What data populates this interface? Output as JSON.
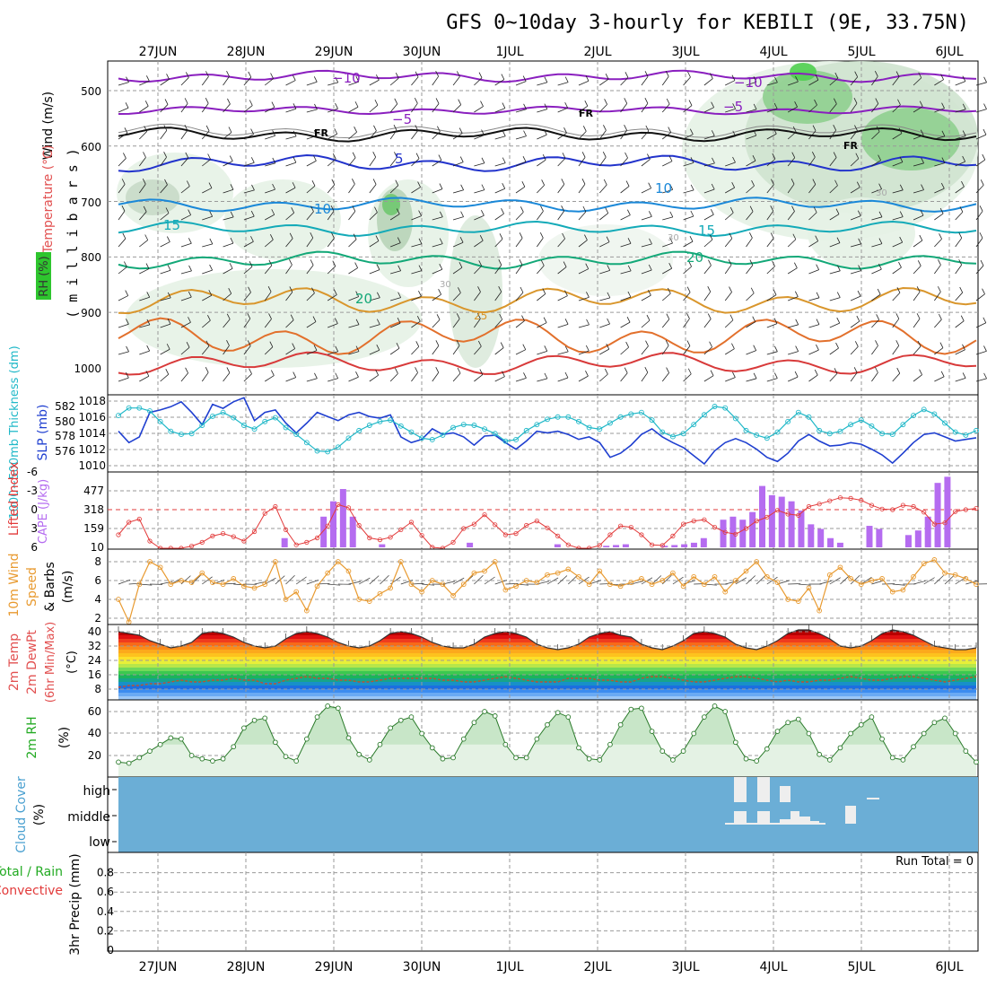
{
  "title": "GFS 0~10day 3-hourly for KEBILI (9E, 33.75N)",
  "date_labels": [
    "27JUN",
    "28JUN",
    "29JUN",
    "30JUN",
    "1JUL",
    "2JUL",
    "3JUL",
    "4JUL",
    "5JUL",
    "6JUL"
  ],
  "run_total": "Run Total = 0",
  "colors": {
    "rh_green": "#5fd25f",
    "cloud_blue": "#6baed6",
    "slp": "#1f3fd0",
    "thickness": "#20b8c8",
    "lifted": "#e23a3a",
    "cape": "#b56cf0",
    "wind": "#e89a30",
    "rh2m": "#22aa22"
  },
  "panels": {
    "upper": {
      "labels": {
        "wind": "Wind (m/s)",
        "temperature": "Temperature (°C)",
        "rh": "RH (%)",
        "millibars": "( m i l l i b a r s )"
      },
      "ticks": [
        "500",
        "600",
        "700",
        "800",
        "900",
        "1000"
      ],
      "contour_labels": {
        "minus10": "−10",
        "minus5": "−5",
        "fr": "FR",
        "five": "5",
        "ten": "10",
        "fifteen": "15",
        "twenty": "20",
        "twentyfive": "25",
        "thirty": "30"
      }
    },
    "slp": {
      "ylabel_slp": "SLP (mb)",
      "ylabel_thk": "1000~500mb Thickness (dm)",
      "left_ticks": [
        "582",
        "580",
        "578",
        "576"
      ],
      "right_ticks": [
        "1018",
        "1016",
        "1014",
        "1012",
        "1010"
      ]
    },
    "li": {
      "ylabel_li": "Lifted Index",
      "ylabel_cape": "CAPE (J/kg)",
      "li_ticks": [
        "-6",
        "-3",
        "0",
        "3",
        "6"
      ],
      "cape_ticks": [
        "477",
        "318",
        "159",
        "10"
      ]
    },
    "wind": {
      "ylabel1": "10m Wind",
      "ylabel2": "Speed",
      "ylabel3": "& Barbs",
      "unit": "(m/s)",
      "ticks": [
        "8",
        "6",
        "4",
        "2"
      ]
    },
    "temp": {
      "ylabel1": "2m Temp",
      "ylabel2": "2m DewPt",
      "ylabel3": "(6hr Min/Max)",
      "unit": "(°C)",
      "ticks": [
        "40",
        "32",
        "24",
        "16",
        "8"
      ]
    },
    "rh2m": {
      "ylabel": "2m RH",
      "unit": "(%)",
      "ticks": [
        "60",
        "40",
        "20"
      ]
    },
    "cloud": {
      "ylabel": "Cloud Cover",
      "unit": "(%)",
      "levels": [
        "high",
        "middle",
        "low"
      ]
    },
    "precip": {
      "ylabel1": "Total / Rain",
      "ylabel2": "Convective",
      "ylabel3": "3hr Precip (mm)",
      "ticks": [
        "0.8",
        "0.6",
        "0.4",
        "0.2",
        "0"
      ]
    }
  },
  "chart_data": [
    {
      "type": "line",
      "title": "SLP (mb)",
      "series": [
        {
          "name": "SLP (mb)",
          "unit": "mb",
          "values": [
            1014.2,
            1012.8,
            1013.5,
            1016.5,
            1016.8,
            1017.2,
            1017.8,
            1016.5,
            1015.0,
            1017.5,
            1017.0,
            1017.8,
            1018.3,
            1015.5,
            1016.5,
            1016.8,
            1015.2,
            1014.0,
            1015.2,
            1016.5,
            1016.0,
            1015.5,
            1016.2,
            1016.5,
            1016.0,
            1015.8,
            1016.2,
            1013.5,
            1012.8,
            1013.2,
            1014.5,
            1013.8,
            1014.0,
            1013.5,
            1012.5,
            1013.6,
            1013.7,
            1012.8,
            1012.0,
            1013.0,
            1014.2,
            1014.0,
            1014.2,
            1013.8,
            1013.2,
            1013.5,
            1012.8,
            1011.0,
            1011.5,
            1012.5,
            1013.8,
            1014.5,
            1013.5,
            1012.8,
            1012.2,
            1011.2,
            1010.2,
            1011.8,
            1012.8,
            1013.3,
            1012.8,
            1012.0,
            1011.0,
            1010.5,
            1011.5,
            1013.0,
            1013.8,
            1013.0,
            1012.4,
            1012.5,
            1012.8,
            1012.6,
            1012.0,
            1011.3,
            1010.3,
            1011.5,
            1012.8,
            1013.8,
            1014.0,
            1013.5,
            1013.0,
            1013.2,
            1013.4
          ]
        }
      ]
    },
    {
      "type": "line",
      "title": "1000~500mb Thickness (dm)",
      "series": [
        {
          "name": "1000~500mb Thickness (dm)",
          "unit": "dm",
          "values": [
            580.8,
            581.8,
            581.8,
            581.4,
            580.0,
            578.7,
            578.3,
            578.4,
            579.5,
            580.7,
            581.2,
            580.5,
            579.5,
            579.0,
            580.0,
            580.5,
            579.2,
            578.3,
            577.2,
            576.1,
            576.0,
            576.6,
            577.8,
            578.8,
            579.5,
            580.0,
            580.2,
            579.4,
            578.6,
            577.8,
            577.6,
            578.2,
            579.2,
            579.6,
            579.5,
            579.0,
            578.4,
            577.4,
            577.6,
            578.8,
            579.6,
            580.3,
            580.6,
            580.6,
            580.0,
            579.2,
            579.0,
            579.8,
            580.6,
            581.0,
            581.2,
            580.2,
            578.6,
            578.0,
            578.4,
            579.6,
            580.9,
            582.0,
            581.8,
            580.4,
            578.8,
            578.2,
            577.8,
            578.6,
            580.0,
            581.2,
            580.6,
            578.8,
            578.4,
            578.7,
            579.6,
            580.2,
            579.4,
            578.4,
            578.3,
            579.6,
            580.8,
            581.6,
            581.0,
            579.8,
            578.6,
            578.2,
            578.8
          ]
        }
      ]
    },
    {
      "type": "line",
      "title": "Lifted Index",
      "series": [
        {
          "name": "Lifted Index",
          "values": [
            4.0,
            2.0,
            1.5,
            5.0,
            6.4,
            6.8,
            6.6,
            5.8,
            5.2,
            4.2,
            3.8,
            4.3,
            5.0,
            3.5,
            0.6,
            -0.5,
            3.2,
            5.6,
            5.2,
            4.5,
            2.6,
            -0.8,
            -0.3,
            2.5,
            4.5,
            4.8,
            4.4,
            3.2,
            2.0,
            4.1,
            6.0,
            6.3,
            5.2,
            3.0,
            2.3,
            0.8,
            2.4,
            4.0,
            3.8,
            2.5,
            1.8,
            2.9,
            4.2,
            5.6,
            6.3,
            6.8,
            5.7,
            4.0,
            2.6,
            2.8,
            4.0,
            5.6,
            5.7,
            4.2,
            2.3,
            1.8,
            1.6,
            2.8,
            3.6,
            3.9,
            3.0,
            1.8,
            1.2,
            0.1,
            0.7,
            0.9,
            -0.5,
            -0.9,
            -1.4,
            -1.9,
            -1.8,
            -1.5,
            -0.7,
            -0.1,
            0.0,
            -0.7,
            -0.5,
            0.4,
            2.3,
            2.1,
            0.3,
            0.0,
            -0.2,
            0.0,
            2.4,
            3.5,
            1.0,
            -1.0,
            -2.5,
            -3.0,
            -2.0
          ]
        }
      ]
    },
    {
      "type": "bar",
      "title": "CAPE (J/kg)",
      "series": [
        {
          "name": "CAPE (J/kg)",
          "unit": "J/kg",
          "values": [
            0,
            0,
            0,
            0,
            0,
            0,
            0,
            0,
            0,
            0,
            0,
            0,
            0,
            0,
            0,
            0,
            0,
            0,
            0,
            0,
            0,
            0,
            0,
            0,
            0,
            0,
            0,
            0,
            0,
            0,
            0,
            0,
            0,
            0,
            0,
            0,
            0,
            0,
            0,
            0,
            0,
            0,
            0,
            0,
            0,
            0,
            0,
            0,
            0,
            0,
            0,
            0,
            0,
            0,
            0,
            0,
            0,
            0,
            0,
            0,
            0,
            0,
            0,
            0,
            0,
            0,
            0,
            0,
            0,
            0,
            0,
            0,
            0,
            0,
            0,
            0,
            0,
            0,
            0,
            0,
            0,
            0,
            0
          ]
        }
      ]
    },
    {
      "type": "line",
      "title": "10m Wind Speed (m/s)",
      "series": [
        {
          "name": "10m Wind Speed",
          "unit": "m/s",
          "values": [
            4.0,
            1.6,
            5.6,
            8.0,
            7.4,
            5.6,
            6.0,
            5.8,
            6.8,
            5.8,
            5.6,
            6.2,
            5.4,
            5.2,
            5.6,
            8.0,
            4.0,
            4.8,
            2.8,
            5.4,
            6.8,
            8.0,
            7.0,
            4.0,
            3.8,
            4.6,
            5.2,
            8.0,
            5.6,
            4.8,
            6.0,
            5.6,
            4.4,
            5.6,
            6.8,
            7.0,
            8.0,
            5.0,
            5.4,
            6.0,
            5.8,
            6.6,
            6.8,
            7.2,
            6.4,
            5.6,
            7.0,
            5.6,
            5.4,
            5.8,
            6.2,
            5.6,
            6.0,
            6.8,
            5.4,
            6.4,
            5.6,
            6.4,
            4.8,
            6.0,
            7.0,
            8.0,
            6.4,
            5.8,
            4.0,
            3.8,
            5.2,
            2.8,
            6.6,
            7.4,
            6.2,
            5.6,
            6.0,
            6.2,
            4.8,
            5.0,
            6.4,
            7.8,
            8.2,
            6.8,
            6.6,
            6.2,
            5.6
          ]
        }
      ]
    },
    {
      "type": "line",
      "title": "2m Temp / 2m DewPt (°C)",
      "series": [
        {
          "name": "2m Temp",
          "unit": "°C",
          "values": [
            40,
            39,
            38,
            35,
            33,
            31,
            32,
            34,
            39,
            40,
            39,
            37,
            34,
            32,
            31,
            32,
            36,
            39,
            40,
            39,
            37,
            34,
            32,
            31,
            32,
            35,
            39,
            40,
            39,
            37,
            34,
            32,
            31,
            31,
            33,
            37,
            39,
            40,
            39,
            37,
            33,
            31,
            30,
            31,
            33,
            37,
            39,
            40,
            38,
            37,
            33,
            31,
            30,
            32,
            35,
            39,
            40,
            39,
            37,
            33,
            31,
            30,
            32,
            35,
            39,
            41,
            41,
            39,
            36,
            32,
            31,
            32,
            35,
            39,
            41,
            40,
            38,
            35,
            32,
            31,
            30,
            30,
            31
          ]
        },
        {
          "name": "2m DewPt",
          "unit": "°C",
          "values": [
            9,
            10,
            10,
            11,
            11,
            12,
            13,
            12,
            12,
            13,
            13,
            14,
            13,
            13,
            11,
            11,
            13,
            14,
            15,
            14,
            14,
            13,
            13,
            12,
            12,
            13,
            14,
            14,
            14,
            14,
            14,
            13,
            13,
            12,
            12,
            13,
            14,
            15,
            14,
            13,
            12,
            12,
            12,
            14,
            14,
            14,
            13,
            13,
            12,
            12,
            14,
            15,
            15,
            14,
            13,
            12,
            12,
            13,
            14,
            15,
            15,
            14,
            13,
            12,
            13,
            12,
            12,
            13,
            13,
            14,
            15,
            14,
            13,
            13,
            14,
            15,
            15,
            14,
            13,
            12,
            13,
            14,
            15
          ]
        }
      ]
    },
    {
      "type": "area",
      "title": "2m RH (%)",
      "series": [
        {
          "name": "2m RH",
          "unit": "%",
          "values": [
            14,
            13,
            18,
            24,
            30,
            36,
            35,
            20,
            17,
            15,
            17,
            28,
            45,
            52,
            54,
            32,
            19,
            15,
            35,
            55,
            65,
            63,
            36,
            21,
            16,
            30,
            45,
            52,
            55,
            40,
            27,
            17,
            18,
            35,
            50,
            60,
            56,
            30,
            18,
            18,
            35,
            48,
            59,
            55,
            27,
            17,
            16,
            30,
            48,
            62,
            63,
            42,
            24,
            16,
            24,
            40,
            55,
            65,
            60,
            32,
            17,
            15,
            26,
            42,
            50,
            53,
            40,
            21,
            16,
            27,
            40,
            48,
            55,
            35,
            18,
            16,
            28,
            40,
            50,
            54,
            40,
            24,
            14
          ]
        }
      ]
    },
    {
      "type": "bar",
      "title": "Cloud Cover (%)",
      "series": [
        {
          "name": "Cloud Cover",
          "unit": "%",
          "values": []
        }
      ]
    },
    {
      "type": "bar",
      "title": "3hr Precip (mm)",
      "series": [
        {
          "name": "3hr Precip",
          "unit": "mm",
          "values": [
            0,
            0,
            0,
            0,
            0,
            0,
            0,
            0,
            0,
            0,
            0,
            0,
            0,
            0,
            0,
            0,
            0,
            0,
            0,
            0,
            0,
            0,
            0,
            0,
            0,
            0,
            0,
            0,
            0,
            0,
            0,
            0,
            0,
            0,
            0,
            0,
            0,
            0,
            0,
            0,
            0,
            0,
            0,
            0,
            0,
            0,
            0,
            0,
            0,
            0,
            0,
            0,
            0,
            0,
            0,
            0,
            0,
            0,
            0,
            0,
            0,
            0,
            0,
            0,
            0,
            0,
            0,
            0,
            0,
            0,
            0,
            0,
            0,
            0,
            0,
            0,
            0,
            0,
            0,
            0,
            0,
            0,
            0
          ]
        }
      ]
    }
  ]
}
